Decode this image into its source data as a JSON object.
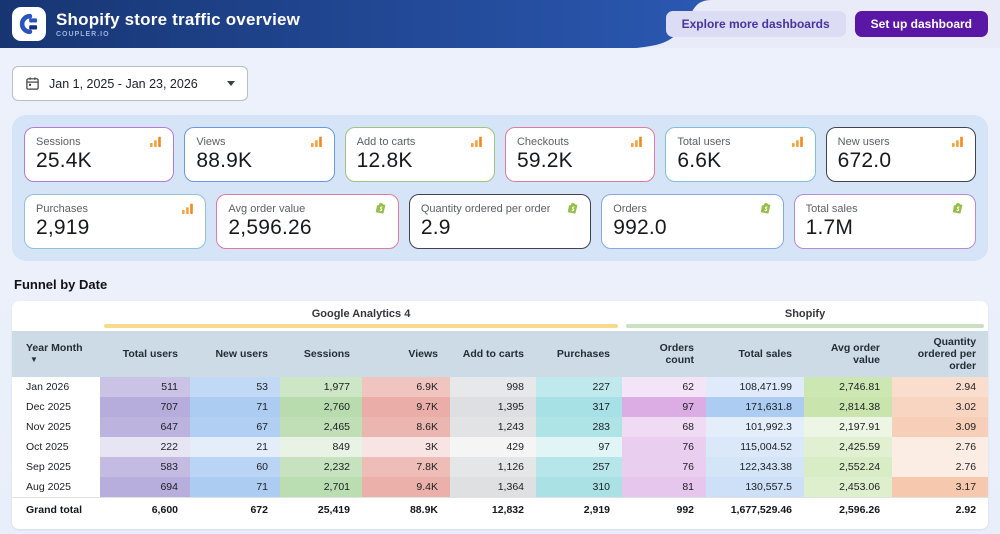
{
  "header": {
    "title": "Shopify store traffic overview",
    "subtitle": "COUPLER.IO",
    "explore_button": "Explore more dashboards",
    "setup_button": "Set up dashboard"
  },
  "date_filter": {
    "value": "Jan 1, 2025 - Jan 23, 2026"
  },
  "kpis": [
    {
      "label": "Sessions",
      "value": "25.4K",
      "border_color": "#b57bd5",
      "icon": "bar-chart-icon"
    },
    {
      "label": "Views",
      "value": "88.9K",
      "border_color": "#6b97e8",
      "icon": "bar-chart-icon"
    },
    {
      "label": "Add to carts",
      "value": "12.8K",
      "border_color": "#9fc380",
      "icon": "bar-chart-icon"
    },
    {
      "label": "Checkouts",
      "value": "59.2K",
      "border_color": "#e2799f",
      "icon": "bar-chart-icon"
    },
    {
      "label": "Total users",
      "value": "6.6K",
      "border_color": "#7fc0d8",
      "icon": "bar-chart-icon"
    },
    {
      "label": "New users",
      "value": "672.0",
      "border_color": "#3f4450",
      "icon": "bar-chart-icon"
    },
    {
      "label": "Purchases",
      "value": "2,919",
      "border_color": "#93c1d6",
      "icon": "bar-chart-icon"
    },
    {
      "label": "Avg order value",
      "value": "2,596.26",
      "border_color": "#e2799f",
      "icon": "shopify-bag-icon"
    },
    {
      "label": "Quantity ordered per order",
      "value": "2.9",
      "border_color": "#3f4450",
      "icon": "shopify-bag-icon"
    },
    {
      "label": "Orders",
      "value": "992.0",
      "border_color": "#86a7ea",
      "icon": "shopify-bag-icon"
    },
    {
      "label": "Total sales",
      "value": "1.7M",
      "border_color": "#b88ad2",
      "icon": "shopify-bag-icon"
    }
  ],
  "chart_data": {
    "type": "table",
    "title": "Funnel by Date",
    "sorted_column": "Year Month",
    "column_groups": [
      {
        "label": "Google Analytics 4",
        "color": "#f7db8d",
        "span": 6
      },
      {
        "label": "Shopify",
        "color": "#c9e0c1",
        "span": 4
      }
    ],
    "columns": [
      {
        "label": "Year Month",
        "heat": null
      },
      {
        "label": "Total users",
        "heat": "#7b6ac0"
      },
      {
        "label": "New users",
        "heat": "#6aa3e8"
      },
      {
        "label": "Sessions",
        "heat": "#7fbf6e"
      },
      {
        "label": "Views",
        "heat": "#d96a5e"
      },
      {
        "label": "Add to carts",
        "heat": "#aab0b6"
      },
      {
        "label": "Purchases",
        "heat": "#5ec8cf"
      },
      {
        "label": "Orders count",
        "heat": "#c06ad0"
      },
      {
        "label": "Total sales",
        "heat": "#6aa3e8"
      },
      {
        "label": "Avg order value",
        "heat": "#9ccf6a"
      },
      {
        "label": "Quantity ordered per order",
        "heat": "#ef9a6a"
      }
    ],
    "rows": [
      [
        "Jan 2026",
        "511",
        "53",
        "1,977",
        "6.9K",
        "998",
        "227",
        "62",
        "108,471.99",
        "2,746.81",
        "2.94"
      ],
      [
        "Dec 2025",
        "707",
        "71",
        "2,760",
        "9.7K",
        "1,395",
        "317",
        "97",
        "171,631.8",
        "2,814.38",
        "3.02"
      ],
      [
        "Nov 2025",
        "647",
        "67",
        "2,465",
        "8.6K",
        "1,243",
        "283",
        "68",
        "101,992.3",
        "2,197.91",
        "3.09"
      ],
      [
        "Oct 2025",
        "222",
        "21",
        "849",
        "3K",
        "429",
        "97",
        "76",
        "115,004.52",
        "2,425.59",
        "2.76"
      ],
      [
        "Sep 2025",
        "583",
        "60",
        "2,232",
        "7.8K",
        "1,126",
        "257",
        "76",
        "122,343.38",
        "2,552.24",
        "2.76"
      ],
      [
        "Aug 2025",
        "694",
        "71",
        "2,701",
        "9.4K",
        "1,364",
        "310",
        "81",
        "130,557.5",
        "2,453.06",
        "3.17"
      ]
    ],
    "grand_total": [
      "Grand total",
      "6,600",
      "672",
      "25,419",
      "88.9K",
      "12,832",
      "2,919",
      "992",
      "1,677,529.46",
      "2,596.26",
      "2.92"
    ]
  }
}
